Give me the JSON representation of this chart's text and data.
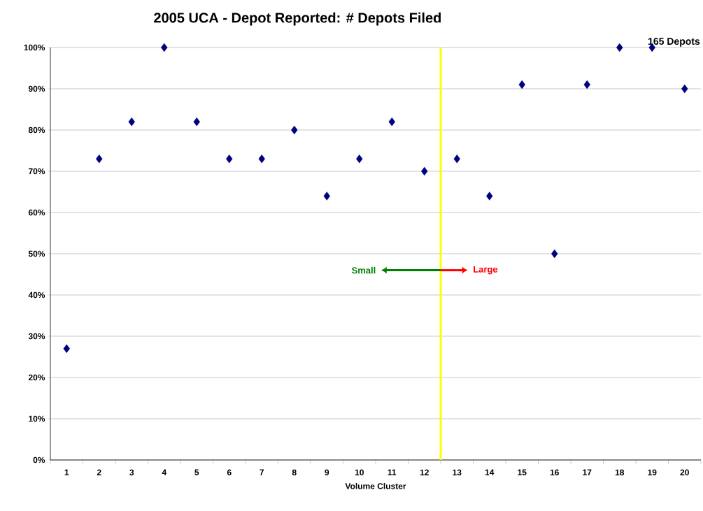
{
  "chart_data": {
    "type": "scatter",
    "title": "2005 UCA - Depot Reported:  # Depots Filed",
    "xlabel": "Volume Cluster",
    "x": [
      1,
      2,
      3,
      4,
      5,
      6,
      7,
      8,
      9,
      10,
      11,
      12,
      13,
      14,
      15,
      16,
      17,
      18,
      19,
      20
    ],
    "values": [
      27,
      73,
      82,
      100,
      82,
      73,
      73,
      80,
      64,
      73,
      82,
      70,
      73,
      64,
      91,
      50,
      91,
      100,
      100,
      90
    ],
    "color": "#000080",
    "marker": "diamond",
    "xlim": [
      0.5,
      20.5
    ],
    "xticks": [
      1,
      2,
      3,
      4,
      5,
      6,
      7,
      8,
      9,
      10,
      11,
      12,
      13,
      14,
      15,
      16,
      17,
      18,
      19,
      20
    ],
    "ylim": [
      0,
      100
    ],
    "yticks": [
      {
        "value": 0,
        "label": "0%"
      },
      {
        "value": 10,
        "label": "10%"
      },
      {
        "value": 20,
        "label": "20%"
      },
      {
        "value": 30,
        "label": "30%"
      },
      {
        "value": 40,
        "label": "40%"
      },
      {
        "value": 50,
        "label": "50%"
      },
      {
        "value": 60,
        "label": "60%"
      },
      {
        "value": 70,
        "label": "70%"
      },
      {
        "value": 80,
        "label": "80%"
      },
      {
        "value": 90,
        "label": "90%"
      },
      {
        "value": 100,
        "label": "100%"
      }
    ],
    "grid": "y",
    "ref_lines": [
      {
        "axis": "x",
        "value": 12.5,
        "color": "#ffff00"
      }
    ],
    "annotations": [
      "165 Depots",
      "Small",
      "Large"
    ]
  }
}
